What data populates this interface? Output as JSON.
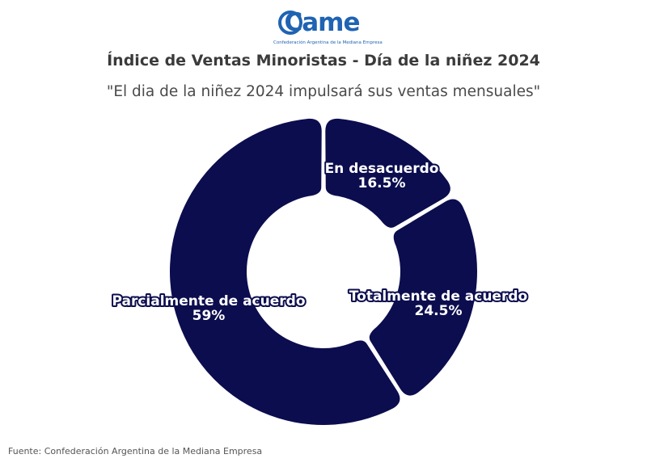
{
  "logo": {
    "wordmark": "Came",
    "subtitle": "Confederación Argentina de la Mediana Empresa",
    "color": "#1f63b3"
  },
  "title": "Índice de Ventas Minoristas - Día de la niñez 2024",
  "subtitle": "\"El dia de la niñez 2024 impulsará sus ventas mensuales\"",
  "source": "Fuente: Confederación Argentina de la Mediana Empresa",
  "colors": {
    "slice": "#0c0d4e",
    "label_fill": "#ffffff",
    "label_outline": "#0c0d4e"
  },
  "chart_data": {
    "type": "pie",
    "donut": true,
    "categories": [
      "En desacuerdo",
      "Totalmente de acuerdo",
      "Parcialmente de acuerdo"
    ],
    "values": [
      16.5,
      24.5,
      59
    ],
    "labels": [
      "16.5%",
      "24.5%",
      "59%"
    ],
    "start_angle_deg": 0,
    "direction": "clockwise",
    "legend": "none"
  }
}
